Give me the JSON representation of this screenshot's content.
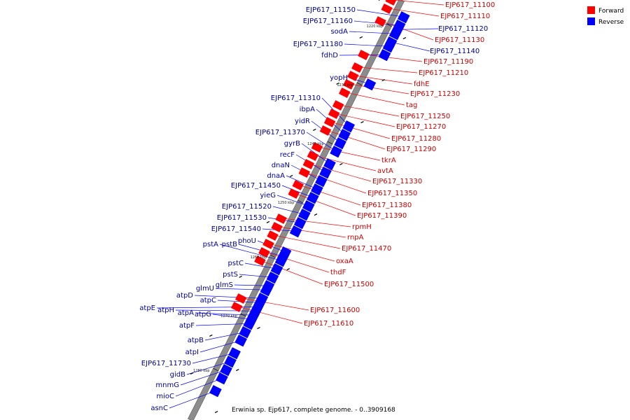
{
  "caption": "Erwinia sp. Ejp617, complete genome. - 0..3909168",
  "legend": [
    {
      "label": "Forward",
      "color": "#ff0000"
    },
    {
      "label": "Reverse",
      "color": "#0000ff"
    }
  ],
  "colors": {
    "forward": "#ff0000",
    "reverse": "#0000ff",
    "forward_label": "#cc0000",
    "reverse_label": "#000099",
    "backbone": "#8c8c8c"
  },
  "ticks": [
    "1220 kbp",
    "1230 kbp",
    "1240 kbp",
    "1250 kbp",
    "1260 kbp",
    "1270 kbp",
    "1280 kbp"
  ],
  "forward_genes": [
    "EJP617_11100",
    "EJP617_11110",
    "EJP617_11130",
    "EJP617_11190",
    "EJP617_11210",
    "fdhE",
    "EJP617_11230",
    "tag",
    "EJP617_11250",
    "EJP617_11270",
    "EJP617_11280",
    "EJP617_11290",
    "tkrA",
    "avtA",
    "EJP617_11330",
    "EJP617_11350",
    "EJP617_11380",
    "EJP617_11390",
    "rpmH",
    "rnpA",
    "EJP617_11470",
    "oxaA",
    "thdF",
    "EJP617_11500",
    "EJP617_11600",
    "EJP617_11610"
  ],
  "reverse_genes": [
    "EJP617_11150",
    "EJP617_11160",
    "EJP617_11120",
    "EJP617_11140",
    "sodA",
    "EJP617_11180",
    "fdhD",
    "yopH",
    "EJP617_11310",
    "ibpA",
    "yidR",
    "EJP617_11370",
    "gyrB",
    "recF",
    "dnaN",
    "dnaA",
    "EJP617_11450",
    "yieG",
    "EJP617_11520",
    "EJP617_11530",
    "EJP617_11540",
    "phoU",
    "pstA",
    "pstB",
    "pstC",
    "pstS",
    "glmS",
    "glmU",
    "atpD",
    "atpC",
    "atpE",
    "atpH",
    "atpA",
    "atpG",
    "atpF",
    "atpB",
    "atpI",
    "EJP617_11730",
    "gidB",
    "mnmG",
    "mioC",
    "asnC"
  ]
}
